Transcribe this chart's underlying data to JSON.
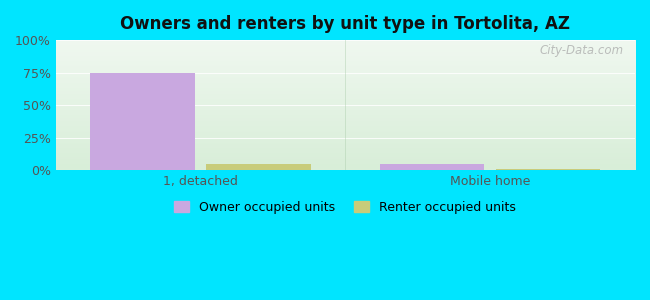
{
  "title": "Owners and renters by unit type in Tortolita, AZ",
  "categories": [
    "1, detached",
    "Mobile home"
  ],
  "owner_values": [
    75.0,
    4.5
  ],
  "renter_values": [
    5.0,
    1.0
  ],
  "owner_color": "#c9a8e0",
  "renter_color": "#c8cc7a",
  "background_color": "#00e5ff",
  "plot_bg_top": "#f0f8f0",
  "plot_bg_bottom": "#d8eed8",
  "yticks": [
    0,
    25,
    50,
    75,
    100
  ],
  "ytick_labels": [
    "0%",
    "25%",
    "50%",
    "75%",
    "100%"
  ],
  "legend_owner": "Owner occupied units",
  "legend_renter": "Renter occupied units",
  "owner_bar_width": 0.18,
  "renter_bar_width": 0.18,
  "watermark": "City-Data.com"
}
